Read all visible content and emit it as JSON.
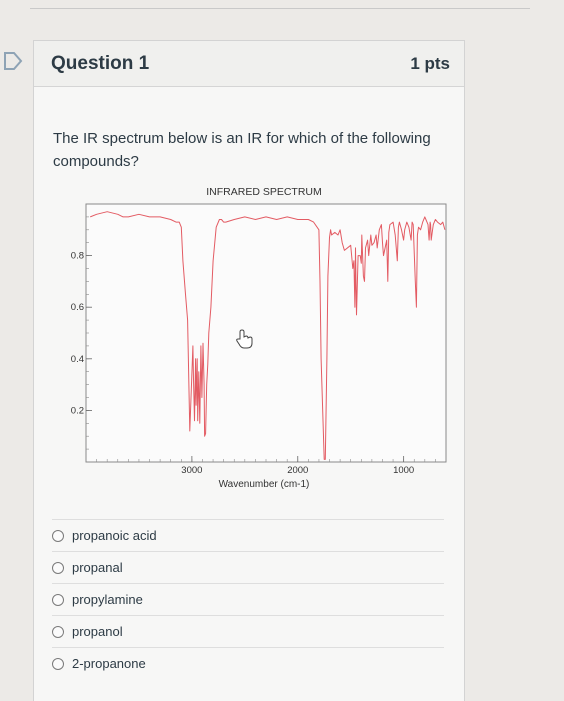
{
  "question": {
    "title": "Question 1",
    "points": "1 pts",
    "text": "The IR spectrum below is an IR for which of the following compounds?"
  },
  "chart_data": {
    "type": "line",
    "title": "INFRARED SPECTRUM",
    "xlabel": "Wavenumber (cm-1)",
    "ylabel": "",
    "xlim": [
      4000,
      600
    ],
    "ylim": [
      0,
      1
    ],
    "x_ticks": [
      "3000",
      "2000",
      "1000"
    ],
    "y_ticks": [
      "0.8",
      "0.6",
      "0.4",
      "0.2"
    ],
    "grid": false,
    "series": [
      {
        "x": [
          3960,
          3900,
          3800,
          3700,
          3650,
          3600,
          3500,
          3400,
          3300,
          3200,
          3150,
          3120,
          3100,
          3085,
          3060,
          3040,
          3020,
          2990,
          2985,
          2975,
          2965,
          2960,
          2950,
          2945,
          2935,
          2925,
          2915,
          2905,
          2895,
          2885,
          2880,
          2870,
          2860,
          2850,
          2840,
          2820,
          2800,
          2770,
          2740,
          2720,
          2700,
          2680,
          2600,
          2500,
          2400,
          2300,
          2200,
          2100,
          2000,
          1950,
          1900,
          1850,
          1800,
          1790,
          1780,
          1750,
          1740,
          1725,
          1715,
          1700,
          1690,
          1680,
          1650,
          1620,
          1600,
          1580,
          1560,
          1500,
          1480,
          1470,
          1460,
          1455,
          1445,
          1430,
          1410,
          1400,
          1395,
          1380,
          1370,
          1360,
          1340,
          1330,
          1310,
          1300,
          1280,
          1260,
          1250,
          1230,
          1210,
          1200,
          1190,
          1180,
          1160,
          1150,
          1140,
          1130,
          1100,
          1080,
          1060,
          1050,
          1040,
          1020,
          1000,
          990,
          970,
          950,
          930,
          920,
          910,
          890,
          880,
          870,
          860,
          840,
          820,
          800,
          790,
          770,
          760,
          750,
          745,
          740,
          730,
          720,
          700,
          680,
          650,
          630,
          610
        ],
        "y": [
          0.95,
          0.96,
          0.97,
          0.96,
          0.95,
          0.95,
          0.96,
          0.95,
          0.95,
          0.94,
          0.93,
          0.93,
          0.91,
          0.78,
          0.65,
          0.55,
          0.12,
          0.45,
          0.32,
          0.16,
          0.4,
          0.22,
          0.4,
          0.16,
          0.35,
          0.15,
          0.45,
          0.25,
          0.46,
          0.3,
          0.1,
          0.11,
          0.3,
          0.38,
          0.5,
          0.6,
          0.78,
          0.91,
          0.94,
          0.94,
          0.93,
          0.93,
          0.94,
          0.95,
          0.94,
          0.95,
          0.94,
          0.95,
          0.94,
          0.94,
          0.94,
          0.93,
          0.9,
          0.7,
          0.4,
          0.01,
          0.01,
          0.4,
          0.72,
          0.87,
          0.9,
          0.88,
          0.89,
          0.88,
          0.9,
          0.85,
          0.82,
          0.84,
          0.75,
          0.78,
          0.6,
          0.83,
          0.57,
          0.8,
          0.8,
          0.77,
          0.88,
          0.72,
          0.7,
          0.83,
          0.86,
          0.8,
          0.88,
          0.84,
          0.85,
          0.88,
          0.83,
          0.9,
          0.92,
          0.85,
          0.8,
          0.82,
          0.86,
          0.7,
          0.89,
          0.92,
          0.93,
          0.88,
          0.78,
          0.91,
          0.93,
          0.9,
          0.86,
          0.9,
          0.93,
          0.91,
          0.86,
          0.93,
          0.92,
          0.7,
          0.6,
          0.88,
          0.91,
          0.9,
          0.93,
          0.95,
          0.94,
          0.92,
          0.86,
          0.93,
          0.92,
          0.86,
          0.89,
          0.92,
          0.94,
          0.93,
          0.92,
          0.93,
          0.9
        ]
      }
    ]
  },
  "answers": [
    {
      "label": "propanoic acid"
    },
    {
      "label": "propanal"
    },
    {
      "label": "propylamine"
    },
    {
      "label": "propanol"
    },
    {
      "label": "2-propanone"
    }
  ],
  "colors": {
    "spectrum_line": "#e35b63",
    "frame": "#8a8a8a"
  },
  "icons": {
    "marker": "question-marker-icon",
    "cursor": "hand-pointer-icon"
  }
}
